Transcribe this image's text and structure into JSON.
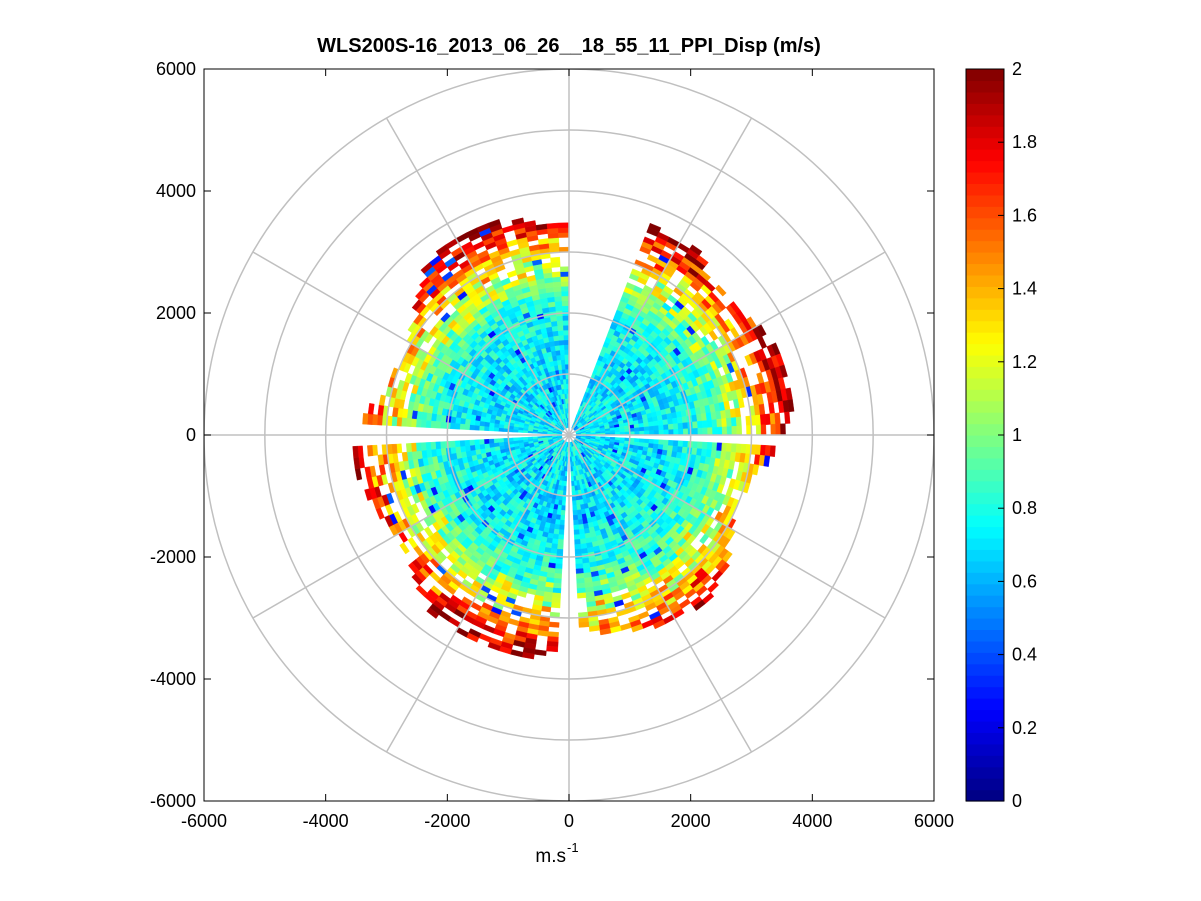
{
  "chart_data": {
    "type": "heatmap",
    "subtype": "polar-ppi",
    "title": "WLS200S-16_2013_06_26__18_55_11_PPI_Disp (m/s)",
    "xlabel": "m.s",
    "xlabel_superscript": "-1",
    "ylabel": "",
    "xlim": [
      -6000,
      6000
    ],
    "ylim": [
      -6000,
      6000
    ],
    "x_ticks": [
      "-6000",
      "-4000",
      "-2000",
      "0",
      "2000",
      "4000",
      "6000"
    ],
    "y_ticks": [
      "6000",
      "4000",
      "2000",
      "0",
      "-2000",
      "-4000",
      "-6000"
    ],
    "range_ring_radii": [
      1000,
      2000,
      3000,
      4000,
      5000,
      6000
    ],
    "spoke_angles_deg": [
      0,
      30,
      60,
      90,
      120,
      150,
      180,
      210,
      240,
      270,
      300,
      330
    ],
    "data_max_range": 3700,
    "gaps_azimuth_deg": [
      [
        0,
        20
      ],
      [
        88,
        92
      ],
      [
        175,
        182
      ],
      [
        265,
        272
      ]
    ],
    "colorbar": {
      "colormap": "jet",
      "range": [
        0,
        2
      ],
      "ticks": [
        "2",
        "1.8",
        "1.6",
        "1.4",
        "1.2",
        "1",
        "0.8",
        "0.6",
        "0.4",
        "0.2",
        "0"
      ]
    },
    "radial_profile": [
      {
        "range": 500,
        "value": 0.72
      },
      {
        "range": 1000,
        "value": 0.7
      },
      {
        "range": 1500,
        "value": 0.72
      },
      {
        "range": 2000,
        "value": 0.78
      },
      {
        "range": 2500,
        "value": 0.95
      },
      {
        "range": 3000,
        "value": 1.3
      },
      {
        "range": 3500,
        "value": 1.8
      },
      {
        "range": 3700,
        "value": 2.0
      }
    ]
  },
  "colors": {
    "grid": "#c0c0c0",
    "axes": "#000000",
    "background": "#ffffff"
  }
}
